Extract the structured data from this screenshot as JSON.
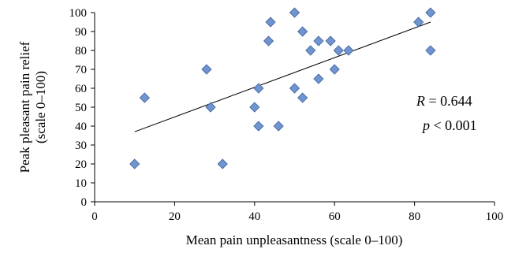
{
  "chart_data": {
    "type": "scatter",
    "xlabel": "Mean pain unpleasantness (scale 0–100)",
    "ylabel_line1": "Peak pleasant pain relief",
    "ylabel_line2": "(scale 0–100)",
    "xlim": [
      0,
      100
    ],
    "ylim": [
      0,
      100
    ],
    "x_ticks": [
      0,
      20,
      40,
      60,
      80,
      100
    ],
    "y_ticks": [
      0,
      10,
      20,
      30,
      40,
      50,
      60,
      70,
      80,
      90,
      100
    ],
    "grid": false,
    "marker": "diamond",
    "marker_color": "#6f94cf",
    "marker_edge_color": "#3d5f9a",
    "points": [
      {
        "x": 10,
        "y": 20
      },
      {
        "x": 12.5,
        "y": 55
      },
      {
        "x": 28,
        "y": 70
      },
      {
        "x": 29,
        "y": 50
      },
      {
        "x": 32,
        "y": 20
      },
      {
        "x": 40,
        "y": 50
      },
      {
        "x": 41,
        "y": 60
      },
      {
        "x": 41,
        "y": 40
      },
      {
        "x": 43.5,
        "y": 85
      },
      {
        "x": 44,
        "y": 95
      },
      {
        "x": 46,
        "y": 40
      },
      {
        "x": 50,
        "y": 100
      },
      {
        "x": 50,
        "y": 60
      },
      {
        "x": 52,
        "y": 90
      },
      {
        "x": 52,
        "y": 55
      },
      {
        "x": 54,
        "y": 80
      },
      {
        "x": 56,
        "y": 85
      },
      {
        "x": 56,
        "y": 65
      },
      {
        "x": 59,
        "y": 85
      },
      {
        "x": 60,
        "y": 70
      },
      {
        "x": 61,
        "y": 80
      },
      {
        "x": 63.5,
        "y": 80
      },
      {
        "x": 81,
        "y": 95
      },
      {
        "x": 84,
        "y": 100
      },
      {
        "x": 84,
        "y": 80
      }
    ],
    "trendline": {
      "x1": 10,
      "y1": 37,
      "x2": 84,
      "y2": 95
    },
    "annotations": {
      "r_var": "R",
      "r_value": " = 0.644",
      "p_var": "p",
      "p_value": " < 0.001"
    }
  }
}
